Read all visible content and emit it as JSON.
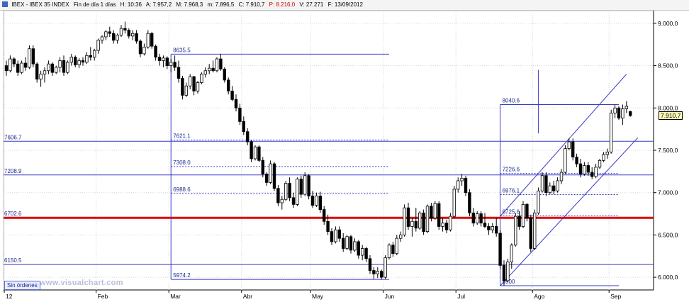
{
  "header": {
    "symbol": "IBEX - IBEX 35 INDEX",
    "period": "Fin de día 1 días",
    "h": "H: 10:36",
    "a": "A: 7.957,2",
    "m": "M: 7.968,3",
    "mm": "m: 7.896,5",
    "c": "C: 7.910,7",
    "p": "P: 8.216,0",
    "v": "V: 27.271",
    "f": "F: 13/09/2012"
  },
  "status_button": "Sin órdenes",
  "watermark": "www.visualchart.com",
  "last_price": "7.910,7",
  "chart_data": {
    "type": "candlestick",
    "title": "IBEX - IBEX 35 INDEX",
    "ylim": [
      5850,
      9150
    ],
    "y_ticks": [
      {
        "value": 9000,
        "label": "9.000,0"
      },
      {
        "value": 8500,
        "label": "8.500,0"
      },
      {
        "value": 8000,
        "label": "8.000,0"
      },
      {
        "value": 7500,
        "label": "7.500,0"
      },
      {
        "value": 7000,
        "label": "7.000,0"
      },
      {
        "value": 6500,
        "label": "6.500,0"
      },
      {
        "value": 6000,
        "label": "6.000,0"
      }
    ],
    "x_ticks": [
      {
        "i": 0,
        "label": "12"
      },
      {
        "i": 24,
        "label": "Feb"
      },
      {
        "i": 43,
        "label": "Mar"
      },
      {
        "i": 62,
        "label": "Abr"
      },
      {
        "i": 80,
        "label": "May"
      },
      {
        "i": 99,
        "label": "Jun"
      },
      {
        "i": 118,
        "label": "Jul"
      },
      {
        "i": 138,
        "label": "Ago"
      },
      {
        "i": 158,
        "label": "Sep"
      }
    ],
    "levels": [
      {
        "value": 7606.7,
        "label": "7606.7"
      },
      {
        "value": 7208.9,
        "label": "7208.9"
      },
      {
        "value": 6702.6,
        "label": "6702.6"
      },
      {
        "value": 6150.5,
        "label": "6150.5"
      }
    ],
    "fib_sets": [
      {
        "i0": 43,
        "i1": 100,
        "high": 8635.5,
        "low": 5974.2,
        "lines": [
          {
            "value": 8635.5,
            "label": "8635.5",
            "dash": false
          },
          {
            "value": 7621.1,
            "label": "7621.1",
            "dash": true
          },
          {
            "value": 7308.0,
            "label": "7308.0",
            "dash": true
          },
          {
            "value": 6988.6,
            "label": "6988.6",
            "dash": true
          },
          {
            "value": 5974.2,
            "label": "5974.2",
            "dash": false
          }
        ]
      },
      {
        "i0": 129,
        "i1": 160,
        "high": 8040.6,
        "low": 5900,
        "lines": [
          {
            "value": 8040.6,
            "label": "8040.6",
            "dash": false
          },
          {
            "value": 7226.6,
            "label": "7226.6",
            "dash": true
          },
          {
            "value": 6976.1,
            "label": "6976.1",
            "dash": true
          },
          {
            "value": 6725.6,
            "label": "6725.6",
            "dash": true
          },
          {
            "value": 5900,
            "label": "5900",
            "dash": false
          }
        ]
      }
    ],
    "channel": {
      "upper": [
        [
          129,
          6720
        ],
        [
          162,
          8400
        ]
      ],
      "lower": [
        [
          129,
          5900
        ],
        [
          165,
          7650
        ]
      ]
    },
    "marker_line": {
      "i": 139,
      "from": 7700,
      "to": 8450
    },
    "ohlc": [
      {
        "o": 8500,
        "h": 8560,
        "l": 8380,
        "c": 8440
      },
      {
        "o": 8440,
        "h": 8620,
        "l": 8420,
        "c": 8580
      },
      {
        "o": 8580,
        "h": 8600,
        "l": 8480,
        "c": 8520
      },
      {
        "o": 8520,
        "h": 8560,
        "l": 8380,
        "c": 8420
      },
      {
        "o": 8420,
        "h": 8560,
        "l": 8400,
        "c": 8530
      },
      {
        "o": 8530,
        "h": 8600,
        "l": 8440,
        "c": 8480
      },
      {
        "o": 8480,
        "h": 8740,
        "l": 8460,
        "c": 8700
      },
      {
        "o": 8700,
        "h": 8740,
        "l": 8480,
        "c": 8520
      },
      {
        "o": 8520,
        "h": 8540,
        "l": 8300,
        "c": 8340
      },
      {
        "o": 8340,
        "h": 8440,
        "l": 8250,
        "c": 8400
      },
      {
        "o": 8400,
        "h": 8480,
        "l": 8300,
        "c": 8440
      },
      {
        "o": 8440,
        "h": 8560,
        "l": 8400,
        "c": 8520
      },
      {
        "o": 8520,
        "h": 8540,
        "l": 8380,
        "c": 8420
      },
      {
        "o": 8420,
        "h": 8500,
        "l": 8400,
        "c": 8480
      },
      {
        "o": 8480,
        "h": 8600,
        "l": 8420,
        "c": 8560
      },
      {
        "o": 8560,
        "h": 8620,
        "l": 8380,
        "c": 8420
      },
      {
        "o": 8420,
        "h": 8560,
        "l": 8400,
        "c": 8540
      },
      {
        "o": 8540,
        "h": 8640,
        "l": 8500,
        "c": 8600
      },
      {
        "o": 8600,
        "h": 8620,
        "l": 8480,
        "c": 8510
      },
      {
        "o": 8510,
        "h": 8590,
        "l": 8470,
        "c": 8560
      },
      {
        "o": 8560,
        "h": 8600,
        "l": 8500,
        "c": 8540
      },
      {
        "o": 8540,
        "h": 8660,
        "l": 8520,
        "c": 8620
      },
      {
        "o": 8620,
        "h": 8720,
        "l": 8560,
        "c": 8600
      },
      {
        "o": 8600,
        "h": 8700,
        "l": 8560,
        "c": 8680
      },
      {
        "o": 8680,
        "h": 8820,
        "l": 8640,
        "c": 8800
      },
      {
        "o": 8800,
        "h": 8860,
        "l": 8760,
        "c": 8840
      },
      {
        "o": 8840,
        "h": 8920,
        "l": 8800,
        "c": 8900
      },
      {
        "o": 8900,
        "h": 8960,
        "l": 8840,
        "c": 8880
      },
      {
        "o": 8880,
        "h": 8920,
        "l": 8760,
        "c": 8800
      },
      {
        "o": 8800,
        "h": 8880,
        "l": 8760,
        "c": 8860
      },
      {
        "o": 8860,
        "h": 8980,
        "l": 8840,
        "c": 8940
      },
      {
        "o": 8940,
        "h": 9020,
        "l": 8880,
        "c": 8920
      },
      {
        "o": 8920,
        "h": 8940,
        "l": 8820,
        "c": 8850
      },
      {
        "o": 8850,
        "h": 8920,
        "l": 8800,
        "c": 8880
      },
      {
        "o": 8880,
        "h": 8920,
        "l": 8760,
        "c": 8790
      },
      {
        "o": 8790,
        "h": 8810,
        "l": 8600,
        "c": 8640
      },
      {
        "o": 8640,
        "h": 8760,
        "l": 8620,
        "c": 8720
      },
      {
        "o": 8720,
        "h": 8920,
        "l": 8700,
        "c": 8880
      },
      {
        "o": 8880,
        "h": 8900,
        "l": 8700,
        "c": 8730
      },
      {
        "o": 8730,
        "h": 8750,
        "l": 8560,
        "c": 8600
      },
      {
        "o": 8600,
        "h": 8640,
        "l": 8500,
        "c": 8560
      },
      {
        "o": 8560,
        "h": 8620,
        "l": 8480,
        "c": 8590
      },
      {
        "o": 8590,
        "h": 8610,
        "l": 8460,
        "c": 8500
      },
      {
        "o": 8500,
        "h": 8580,
        "l": 8420,
        "c": 8540
      },
      {
        "o": 8540,
        "h": 8620,
        "l": 8440,
        "c": 8480
      },
      {
        "o": 8480,
        "h": 8560,
        "l": 8300,
        "c": 8350
      },
      {
        "o": 8350,
        "h": 8380,
        "l": 8100,
        "c": 8150
      },
      {
        "o": 8150,
        "h": 8300,
        "l": 8130,
        "c": 8260
      },
      {
        "o": 8260,
        "h": 8400,
        "l": 8220,
        "c": 8370
      },
      {
        "o": 8370,
        "h": 8380,
        "l": 8150,
        "c": 8200
      },
      {
        "o": 8200,
        "h": 8320,
        "l": 8170,
        "c": 8300
      },
      {
        "o": 8300,
        "h": 8420,
        "l": 8280,
        "c": 8400
      },
      {
        "o": 8400,
        "h": 8480,
        "l": 8360,
        "c": 8440
      },
      {
        "o": 8440,
        "h": 8520,
        "l": 8400,
        "c": 8470
      },
      {
        "o": 8470,
        "h": 8560,
        "l": 8420,
        "c": 8440
      },
      {
        "o": 8440,
        "h": 8600,
        "l": 8420,
        "c": 8580
      },
      {
        "o": 8580,
        "h": 8640,
        "l": 8440,
        "c": 8460
      },
      {
        "o": 8460,
        "h": 8480,
        "l": 8300,
        "c": 8330
      },
      {
        "o": 8330,
        "h": 8360,
        "l": 8160,
        "c": 8200
      },
      {
        "o": 8200,
        "h": 8260,
        "l": 8080,
        "c": 8100
      },
      {
        "o": 8100,
        "h": 8160,
        "l": 7960,
        "c": 8000
      },
      {
        "o": 8000,
        "h": 8050,
        "l": 7800,
        "c": 7840
      },
      {
        "o": 7840,
        "h": 7900,
        "l": 7680,
        "c": 7720
      },
      {
        "o": 7720,
        "h": 7760,
        "l": 7560,
        "c": 7600
      },
      {
        "o": 7600,
        "h": 7620,
        "l": 7360,
        "c": 7400
      },
      {
        "o": 7400,
        "h": 7560,
        "l": 7380,
        "c": 7540
      },
      {
        "o": 7540,
        "h": 7560,
        "l": 7360,
        "c": 7380
      },
      {
        "o": 7380,
        "h": 7420,
        "l": 7180,
        "c": 7220
      },
      {
        "o": 7220,
        "h": 7240,
        "l": 7080,
        "c": 7120
      },
      {
        "o": 7120,
        "h": 7380,
        "l": 7100,
        "c": 7340
      },
      {
        "o": 7340,
        "h": 7360,
        "l": 7020,
        "c": 7050
      },
      {
        "o": 7050,
        "h": 7090,
        "l": 6840,
        "c": 6880
      },
      {
        "o": 6880,
        "h": 6960,
        "l": 6800,
        "c": 6920
      },
      {
        "o": 6920,
        "h": 7140,
        "l": 6900,
        "c": 7110
      },
      {
        "o": 7110,
        "h": 7180,
        "l": 6900,
        "c": 6940
      },
      {
        "o": 6940,
        "h": 7000,
        "l": 6820,
        "c": 6860
      },
      {
        "o": 6860,
        "h": 7180,
        "l": 6840,
        "c": 7160
      },
      {
        "o": 7160,
        "h": 7200,
        "l": 6940,
        "c": 6980
      },
      {
        "o": 6980,
        "h": 7240,
        "l": 6960,
        "c": 7200
      },
      {
        "o": 7200,
        "h": 7220,
        "l": 6920,
        "c": 6960
      },
      {
        "o": 6960,
        "h": 7020,
        "l": 6820,
        "c": 6850
      },
      {
        "o": 6850,
        "h": 7000,
        "l": 6830,
        "c": 6960
      },
      {
        "o": 6960,
        "h": 7010,
        "l": 6760,
        "c": 6800
      },
      {
        "o": 6800,
        "h": 6840,
        "l": 6620,
        "c": 6660
      },
      {
        "o": 6660,
        "h": 6740,
        "l": 6500,
        "c": 6540
      },
      {
        "o": 6540,
        "h": 6580,
        "l": 6380,
        "c": 6420
      },
      {
        "o": 6420,
        "h": 6600,
        "l": 6400,
        "c": 6560
      },
      {
        "o": 6560,
        "h": 6600,
        "l": 6420,
        "c": 6460
      },
      {
        "o": 6460,
        "h": 6520,
        "l": 6300,
        "c": 6340
      },
      {
        "o": 6340,
        "h": 6500,
        "l": 6320,
        "c": 6480
      },
      {
        "o": 6480,
        "h": 6500,
        "l": 6280,
        "c": 6320
      },
      {
        "o": 6320,
        "h": 6460,
        "l": 6300,
        "c": 6420
      },
      {
        "o": 6420,
        "h": 6440,
        "l": 6220,
        "c": 6260
      },
      {
        "o": 6260,
        "h": 6380,
        "l": 6200,
        "c": 6340
      },
      {
        "o": 6340,
        "h": 6360,
        "l": 6180,
        "c": 6220
      },
      {
        "o": 6220,
        "h": 6260,
        "l": 6040,
        "c": 6080
      },
      {
        "o": 6080,
        "h": 6120,
        "l": 5980,
        "c": 6040
      },
      {
        "o": 6040,
        "h": 6120,
        "l": 5990,
        "c": 6070
      },
      {
        "o": 6070,
        "h": 6090,
        "l": 5974,
        "c": 6000
      },
      {
        "o": 6000,
        "h": 6260,
        "l": 5980,
        "c": 6230
      },
      {
        "o": 6230,
        "h": 6400,
        "l": 6210,
        "c": 6380
      },
      {
        "o": 6380,
        "h": 6420,
        "l": 6240,
        "c": 6280
      },
      {
        "o": 6280,
        "h": 6500,
        "l": 6260,
        "c": 6460
      },
      {
        "o": 6460,
        "h": 6540,
        "l": 6420,
        "c": 6500
      },
      {
        "o": 6500,
        "h": 6860,
        "l": 6480,
        "c": 6820
      },
      {
        "o": 6820,
        "h": 6880,
        "l": 6560,
        "c": 6600
      },
      {
        "o": 6600,
        "h": 6700,
        "l": 6480,
        "c": 6660
      },
      {
        "o": 6660,
        "h": 6820,
        "l": 6540,
        "c": 6580
      },
      {
        "o": 6580,
        "h": 6780,
        "l": 6560,
        "c": 6760
      },
      {
        "o": 6760,
        "h": 6800,
        "l": 6500,
        "c": 6540
      },
      {
        "o": 6540,
        "h": 6860,
        "l": 6520,
        "c": 6840
      },
      {
        "o": 6840,
        "h": 6880,
        "l": 6660,
        "c": 6700
      },
      {
        "o": 6700,
        "h": 6900,
        "l": 6680,
        "c": 6870
      },
      {
        "o": 6870,
        "h": 6900,
        "l": 6560,
        "c": 6600
      },
      {
        "o": 6600,
        "h": 6700,
        "l": 6540,
        "c": 6640
      },
      {
        "o": 6640,
        "h": 6680,
        "l": 6520,
        "c": 6560
      },
      {
        "o": 6560,
        "h": 6760,
        "l": 6540,
        "c": 6720
      },
      {
        "o": 6720,
        "h": 7080,
        "l": 6700,
        "c": 7040
      },
      {
        "o": 7040,
        "h": 7180,
        "l": 7000,
        "c": 7140
      },
      {
        "o": 7140,
        "h": 7220,
        "l": 7080,
        "c": 7170
      },
      {
        "o": 7170,
        "h": 7200,
        "l": 6960,
        "c": 7000
      },
      {
        "o": 7000,
        "h": 7040,
        "l": 6720,
        "c": 6760
      },
      {
        "o": 6760,
        "h": 6820,
        "l": 6600,
        "c": 6640
      },
      {
        "o": 6640,
        "h": 6780,
        "l": 6620,
        "c": 6750
      },
      {
        "o": 6750,
        "h": 6780,
        "l": 6600,
        "c": 6640
      },
      {
        "o": 6640,
        "h": 6760,
        "l": 6580,
        "c": 6600
      },
      {
        "o": 6600,
        "h": 6640,
        "l": 6500,
        "c": 6560
      },
      {
        "o": 6560,
        "h": 6640,
        "l": 6520,
        "c": 6600
      },
      {
        "o": 6600,
        "h": 6700,
        "l": 6480,
        "c": 6520
      },
      {
        "o": 6520,
        "h": 6560,
        "l": 6100,
        "c": 6140
      },
      {
        "o": 6140,
        "h": 6200,
        "l": 5900,
        "c": 5960
      },
      {
        "o": 5960,
        "h": 6220,
        "l": 5940,
        "c": 6180
      },
      {
        "o": 6180,
        "h": 6400,
        "l": 6100,
        "c": 6380
      },
      {
        "o": 6380,
        "h": 6760,
        "l": 6360,
        "c": 6720
      },
      {
        "o": 6720,
        "h": 6780,
        "l": 6560,
        "c": 6600
      },
      {
        "o": 6600,
        "h": 6900,
        "l": 6580,
        "c": 6860
      },
      {
        "o": 6860,
        "h": 6880,
        "l": 6660,
        "c": 6700
      },
      {
        "o": 6700,
        "h": 6740,
        "l": 6300,
        "c": 6340
      },
      {
        "o": 6340,
        "h": 6800,
        "l": 6320,
        "c": 6760
      },
      {
        "o": 6760,
        "h": 7060,
        "l": 6740,
        "c": 7020
      },
      {
        "o": 7020,
        "h": 7240,
        "l": 7000,
        "c": 7200
      },
      {
        "o": 7200,
        "h": 7240,
        "l": 6960,
        "c": 7000
      },
      {
        "o": 7000,
        "h": 7120,
        "l": 6980,
        "c": 7080
      },
      {
        "o": 7080,
        "h": 7140,
        "l": 6980,
        "c": 7020
      },
      {
        "o": 7020,
        "h": 7180,
        "l": 7000,
        "c": 7140
      },
      {
        "o": 7140,
        "h": 7280,
        "l": 7100,
        "c": 7240
      },
      {
        "o": 7240,
        "h": 7560,
        "l": 7220,
        "c": 7520
      },
      {
        "o": 7520,
        "h": 7640,
        "l": 7500,
        "c": 7600
      },
      {
        "o": 7600,
        "h": 7640,
        "l": 7380,
        "c": 7420
      },
      {
        "o": 7420,
        "h": 7460,
        "l": 7300,
        "c": 7340
      },
      {
        "o": 7340,
        "h": 7400,
        "l": 7180,
        "c": 7220
      },
      {
        "o": 7220,
        "h": 7360,
        "l": 7200,
        "c": 7320
      },
      {
        "o": 7320,
        "h": 7360,
        "l": 7200,
        "c": 7240
      },
      {
        "o": 7240,
        "h": 7300,
        "l": 7160,
        "c": 7190
      },
      {
        "o": 7190,
        "h": 7340,
        "l": 7170,
        "c": 7300
      },
      {
        "o": 7300,
        "h": 7400,
        "l": 7280,
        "c": 7380
      },
      {
        "o": 7380,
        "h": 7480,
        "l": 7360,
        "c": 7450
      },
      {
        "o": 7450,
        "h": 7520,
        "l": 7400,
        "c": 7480
      },
      {
        "o": 7480,
        "h": 7980,
        "l": 7460,
        "c": 7940
      },
      {
        "o": 7940,
        "h": 8040,
        "l": 7880,
        "c": 8000
      },
      {
        "o": 8000,
        "h": 8020,
        "l": 7860,
        "c": 7880
      },
      {
        "o": 7880,
        "h": 8040,
        "l": 7800,
        "c": 7990
      },
      {
        "o": 7990,
        "h": 8080,
        "l": 7940,
        "c": 8020
      },
      {
        "o": 7957,
        "h": 7968,
        "l": 7896,
        "c": 7910
      }
    ]
  }
}
